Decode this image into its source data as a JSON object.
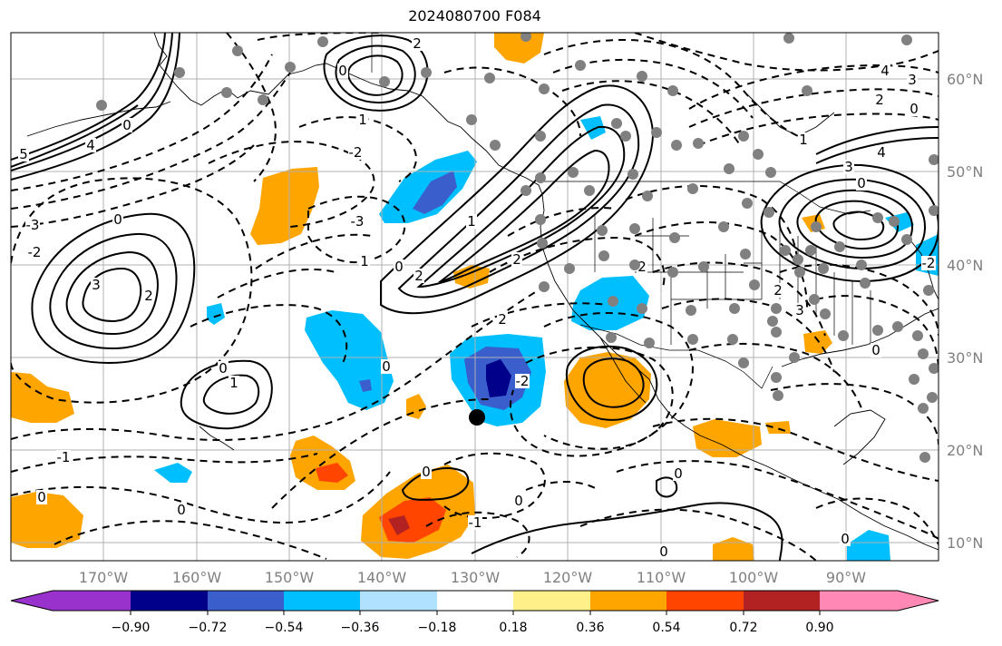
{
  "title": "2024080700 F084",
  "colors": {
    "fill_levels": [
      "#9932cc",
      "#00008b",
      "#3a5fcd",
      "#00bfff",
      "#b0e2ff",
      "#ffffff",
      "#fff08a",
      "#ffa500",
      "#ff4500",
      "#b22222",
      "#ff89b4"
    ],
    "contour": "#000000",
    "grid": "#b0b0b0",
    "station_dot": "#808080",
    "marker": "#000000"
  },
  "longitude_labels": [
    "170°W",
    "160°W",
    "150°W",
    "140°W",
    "130°W",
    "120°W",
    "110°W",
    "100°W",
    "90°W"
  ],
  "latitude_labels": [
    "60°N",
    "50°N",
    "40°N",
    "30°N",
    "20°N",
    "10°N"
  ],
  "colorbar": {
    "tick_labels": [
      "−0.90",
      "−0.72",
      "−0.54",
      "−0.36",
      "−0.18",
      "0.18",
      "0.36",
      "0.54",
      "0.72",
      "0.90"
    ]
  },
  "contour_labels": [
    "0",
    "1",
    "2",
    "3",
    "4",
    "5",
    "-1",
    "-2",
    "-3"
  ],
  "map_elements": {
    "map_frame": "map-frame",
    "anomaly_fills": "filled anomaly regions",
    "stations": "gray station dots",
    "marker": "black storm marker"
  }
}
